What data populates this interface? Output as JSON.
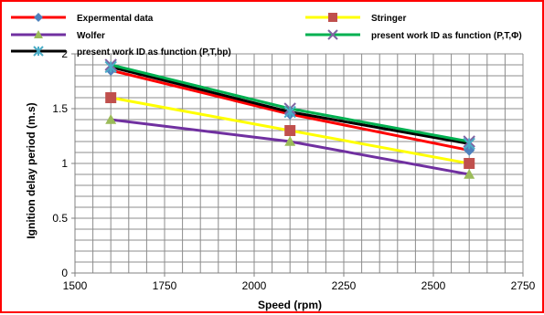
{
  "chart_data": {
    "type": "line",
    "title": "",
    "xlabel": "Speed (rpm)",
    "ylabel": "Ignition delay period (m.s)",
    "xlim": [
      1500,
      2750
    ],
    "ylim": [
      0,
      2
    ],
    "x_ticks": [
      "1500",
      "1750",
      "2000",
      "2250",
      "2500",
      "2750"
    ],
    "y_ticks": [
      "0",
      "0.5",
      "1",
      "1.5",
      "2"
    ],
    "grid": true,
    "legend_position": "top",
    "x": [
      1600,
      2100,
      2600
    ],
    "series": [
      {
        "name": "Expermental data",
        "values": [
          1.85,
          1.45,
          1.12
        ],
        "color": "#ff0000",
        "marker": "diamond",
        "marker_color": "#4f81bd"
      },
      {
        "name": "Stringer",
        "values": [
          1.6,
          1.3,
          1.0
        ],
        "color": "#ffff00",
        "marker": "square",
        "marker_color": "#c0504d"
      },
      {
        "name": "Wolfer",
        "values": [
          1.4,
          1.2,
          0.9
        ],
        "color": "#7030a0",
        "marker": "triangle",
        "marker_color": "#9bbb59"
      },
      {
        "name": "present work ID as function (P,T,Φ)",
        "values": [
          1.9,
          1.5,
          1.2
        ],
        "color": "#00b050",
        "marker": "x",
        "marker_color": "#8064a2"
      },
      {
        "name": "present work ID as function (P,T,bp)",
        "values": [
          1.88,
          1.47,
          1.18
        ],
        "color": "#000000",
        "marker": "star",
        "marker_color": "#4bacc6"
      }
    ]
  }
}
